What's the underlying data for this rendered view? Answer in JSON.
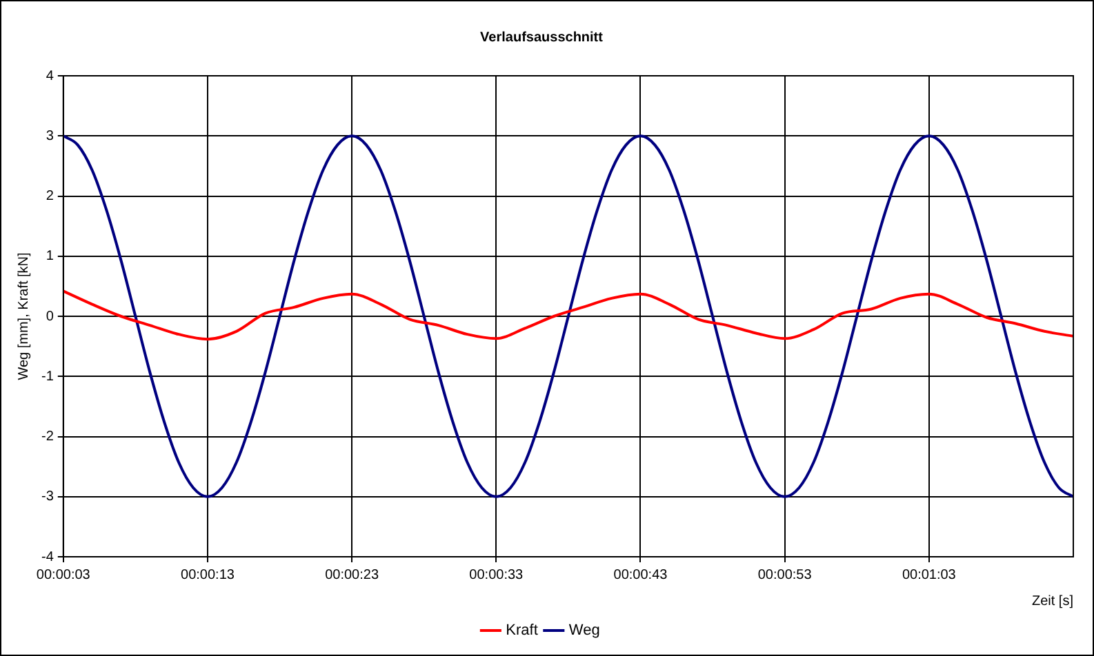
{
  "chart_data": {
    "type": "line",
    "title": "Verlaufsausschnitt",
    "xlabel": "Zeit [s]",
    "ylabel": "Weg [mm], Kraft [kN]",
    "x": [
      3,
      5,
      7,
      9,
      11,
      13,
      15,
      17,
      19,
      21,
      23,
      25,
      27,
      29,
      31,
      33,
      35,
      37,
      39,
      41,
      43,
      45,
      47,
      49,
      51,
      53,
      55,
      57,
      59,
      61,
      63,
      65,
      67,
      69,
      71,
      73
    ],
    "series": [
      {
        "name": "Kraft",
        "color": "#ff0000",
        "values": [
          0.42,
          0.2,
          0.0,
          -0.15,
          -0.3,
          -0.38,
          -0.25,
          0.05,
          0.15,
          0.3,
          0.37,
          0.2,
          -0.05,
          -0.15,
          -0.3,
          -0.37,
          -0.2,
          0.0,
          0.15,
          0.3,
          0.37,
          0.2,
          -0.05,
          -0.15,
          -0.28,
          -0.37,
          -0.22,
          0.05,
          0.12,
          0.3,
          0.37,
          0.2,
          -0.02,
          -0.12,
          -0.25,
          -0.33
        ]
      },
      {
        "name": "Weg",
        "color": "#000080",
        "x": [
          3,
          4,
          5,
          6,
          7,
          8,
          9,
          10,
          11,
          12,
          13,
          14,
          15,
          16,
          17,
          18,
          19,
          20,
          21,
          22,
          23,
          24,
          25,
          26,
          27,
          28,
          29,
          30,
          31,
          32,
          33,
          34,
          35,
          36,
          37,
          38,
          39,
          40,
          41,
          42,
          43,
          44,
          45,
          46,
          47,
          48,
          49,
          50,
          51,
          52,
          53,
          54,
          55,
          56,
          57,
          58,
          59,
          60,
          61,
          62,
          63,
          64,
          65,
          66,
          67,
          68,
          69,
          70,
          71,
          72,
          73
        ],
        "values": [
          3,
          2.85,
          2.43,
          1.76,
          0.93,
          0,
          -0.93,
          -1.76,
          -2.43,
          -2.85,
          -3,
          -2.85,
          -2.43,
          -1.76,
          -0.93,
          0,
          0.93,
          1.76,
          2.43,
          2.85,
          3,
          2.85,
          2.43,
          1.76,
          0.93,
          0,
          -0.93,
          -1.76,
          -2.43,
          -2.85,
          -3,
          -2.85,
          -2.43,
          -1.76,
          -0.93,
          0,
          0.93,
          1.76,
          2.43,
          2.85,
          3,
          2.85,
          2.43,
          1.76,
          0.93,
          0,
          -0.93,
          -1.76,
          -2.43,
          -2.85,
          -3,
          -2.85,
          -2.43,
          -1.76,
          -0.93,
          0,
          0.93,
          1.76,
          2.43,
          2.85,
          3,
          2.85,
          2.43,
          1.76,
          0.93,
          0,
          -0.93,
          -1.76,
          -2.43,
          -2.85,
          -3
        ]
      }
    ],
    "xlim": [
      3,
      73
    ],
    "xticks": [
      {
        "value": 3,
        "label": "00:00:03"
      },
      {
        "value": 13,
        "label": "00:00:13"
      },
      {
        "value": 23,
        "label": "00:00:23"
      },
      {
        "value": 33,
        "label": "00:00:33"
      },
      {
        "value": 43,
        "label": "00:00:43"
      },
      {
        "value": 53,
        "label": "00:00:53"
      },
      {
        "value": 63,
        "label": "00:01:03"
      }
    ],
    "ylim": [
      -4,
      4
    ],
    "yticks": [
      -4,
      -3,
      -2,
      -1,
      0,
      1,
      2,
      3,
      4
    ],
    "grid": true,
    "legend": "bottom",
    "marker": "none",
    "line_style": "solid"
  }
}
